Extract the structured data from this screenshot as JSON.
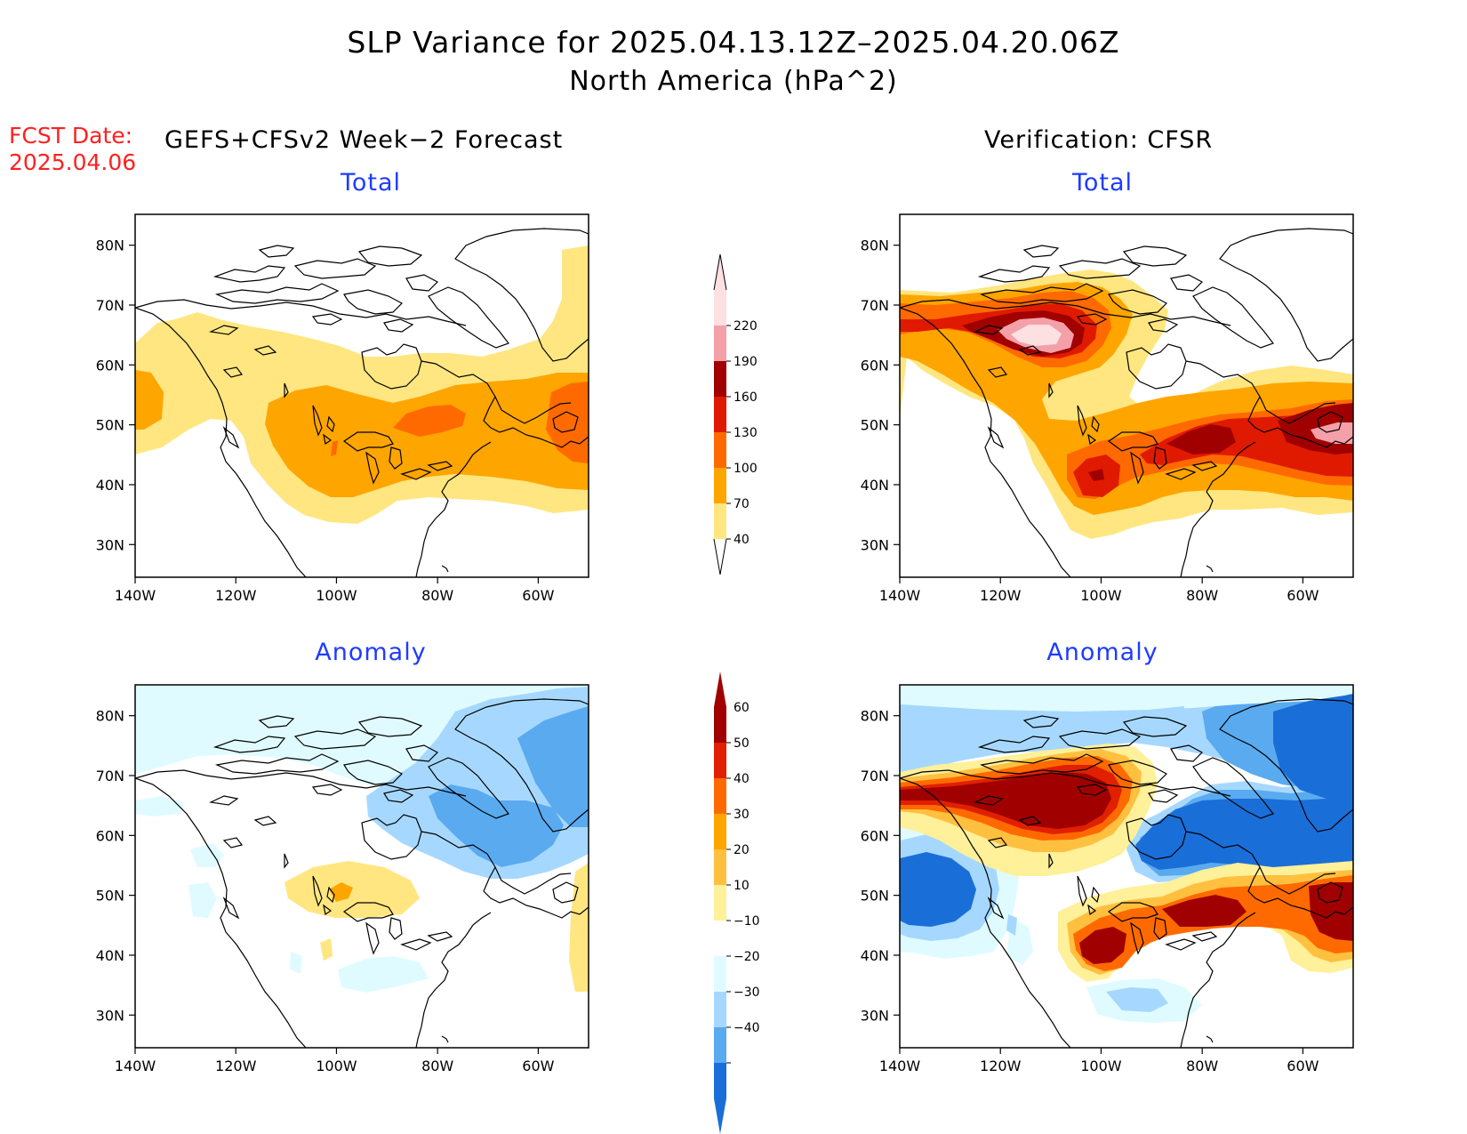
{
  "header": {
    "title": "SLP Variance for 2025.04.13.12Z–2025.04.20.06Z",
    "subtitle": "North America (hPa^2)",
    "fcst_label": "FCST Date:",
    "fcst_date": "2025.04.06",
    "forecast_heading": "GEFS+CFSv2 Week−2 Forecast",
    "verification_heading": "Verification: CFSR"
  },
  "panels": {
    "forecast_total": {
      "title": "Total"
    },
    "verification_total": {
      "title": "Total"
    },
    "forecast_anomaly": {
      "title": "Anomaly"
    },
    "verification_anomaly": {
      "title": "Anomaly"
    }
  },
  "axes": {
    "lat_labels": [
      "80N",
      "70N",
      "60N",
      "50N",
      "40N",
      "30N"
    ],
    "lon_labels": [
      "140W",
      "120W",
      "100W",
      "80W",
      "60W"
    ]
  },
  "colorbars": {
    "total": {
      "ticks": [
        "40",
        "70",
        "100",
        "130",
        "160",
        "190",
        "220"
      ],
      "colors": [
        "#ffe680",
        "#ffa500",
        "#ff6a00",
        "#e01a00",
        "#a00000",
        "#f4a0a8",
        "#fde0e2"
      ]
    },
    "anomaly": {
      "ticks": [
        "60",
        "50",
        "40",
        "30",
        "20",
        "10",
        "−10",
        "−20",
        "−30",
        "−40"
      ],
      "colors": [
        "#a00000",
        "#e02000",
        "#ff6a00",
        "#ffa500",
        "#ffc040",
        "#fff09a",
        "#ffffff",
        "#e0fbff",
        "#a6d8ff",
        "#5aaaf0",
        "#1a6ed8"
      ]
    }
  }
}
